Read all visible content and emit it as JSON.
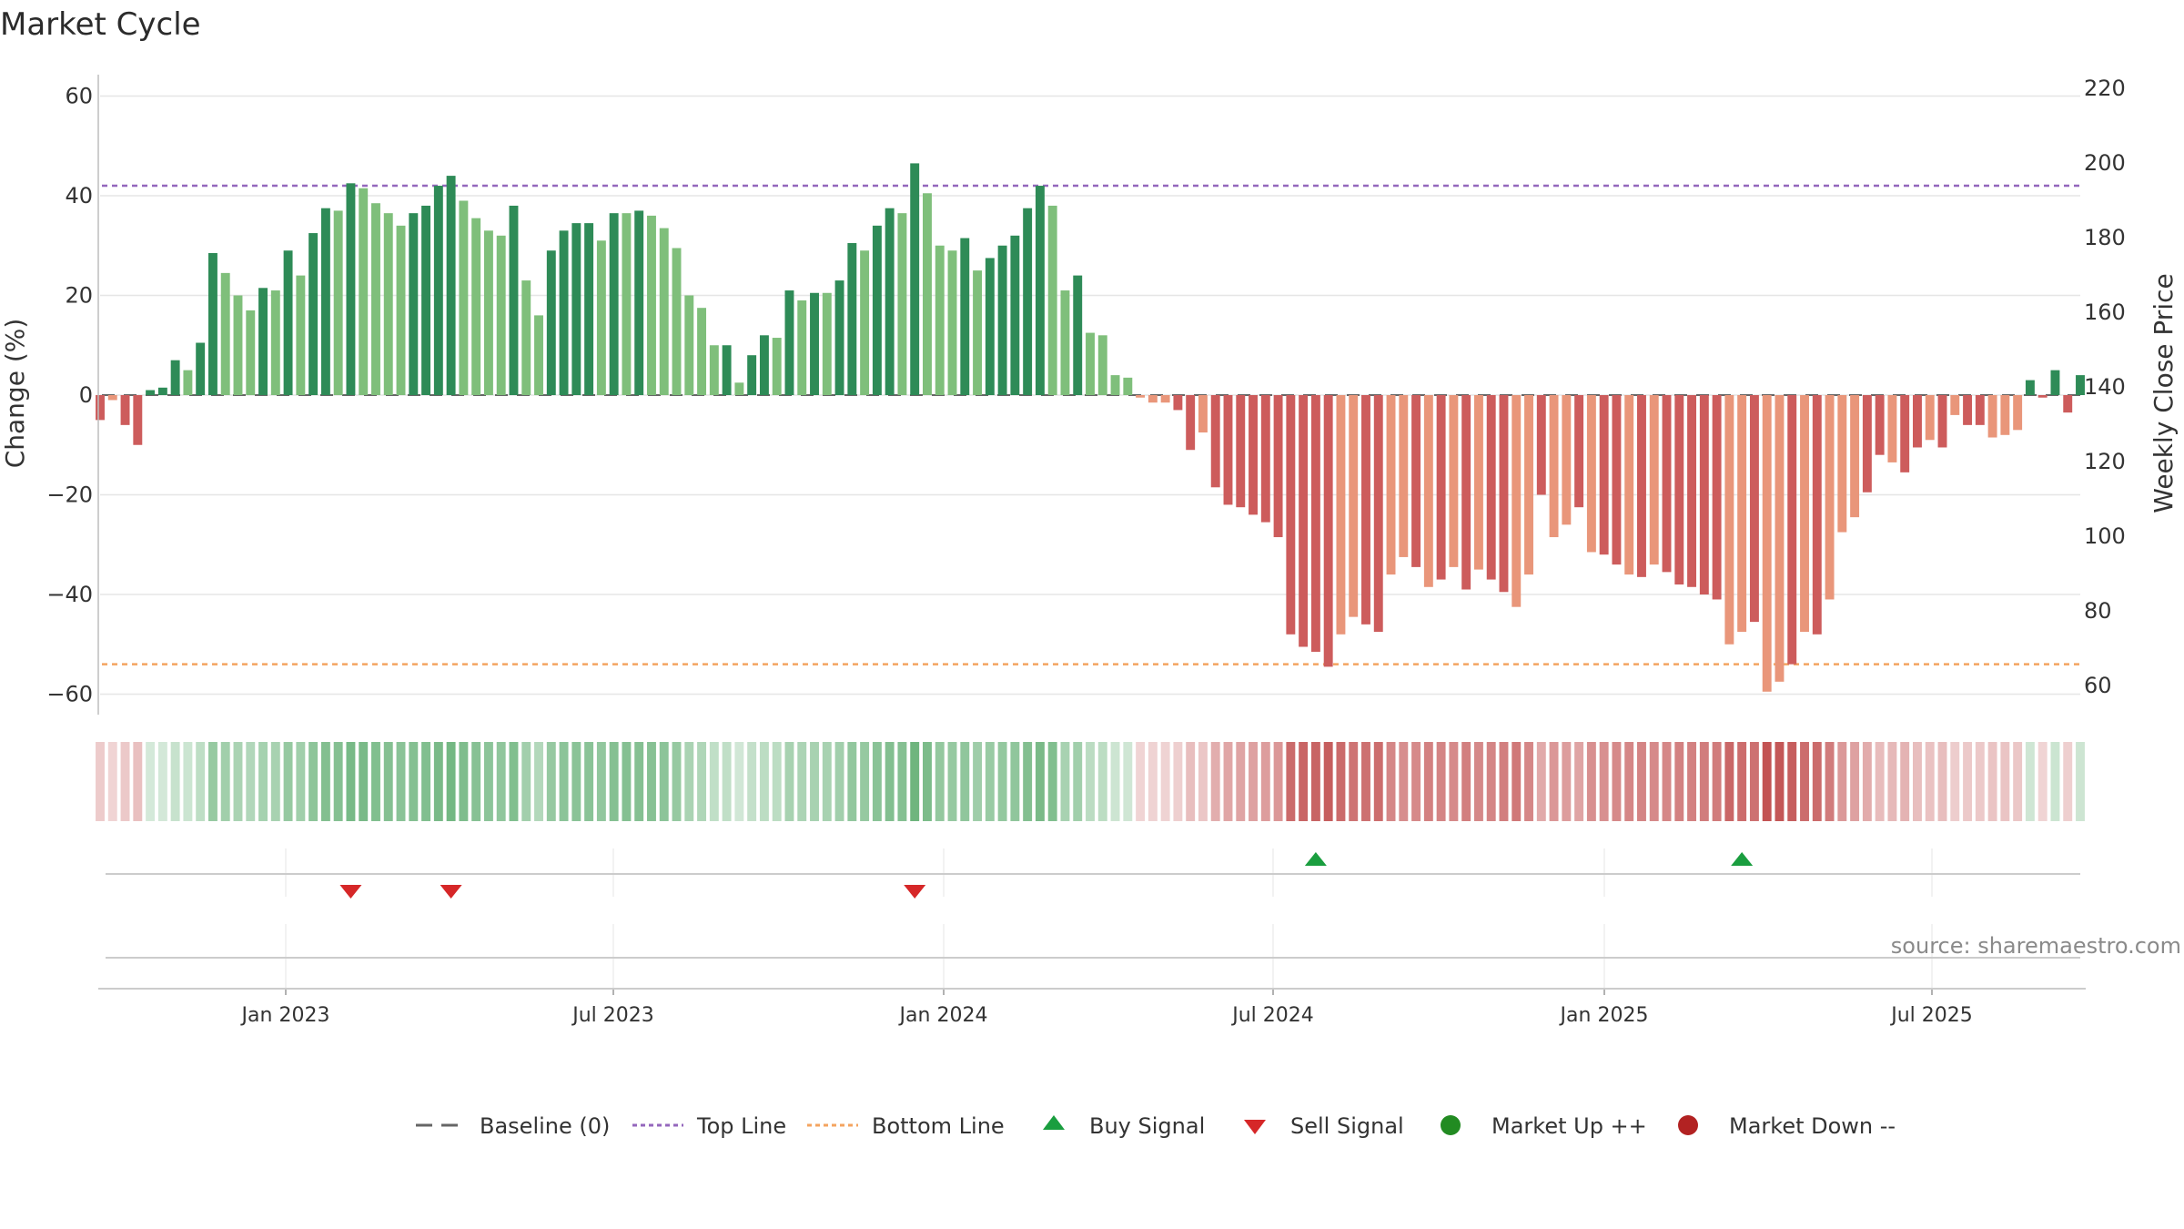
{
  "chart_data": {
    "type": "bar",
    "title": "Market Cycle",
    "ylabel_left": "Change (%)",
    "ylabel_right": "Weekly Close Price",
    "source": "source: sharemaestro.com",
    "y_ticks_left": [
      "60",
      "40",
      "20",
      "0",
      "−20",
      "−40",
      "−60"
    ],
    "y_ticks_right": [
      "220",
      "200",
      "180",
      "160",
      "140",
      "120",
      "100",
      "80",
      "60"
    ],
    "x_ticks": [
      "Jan 2023",
      "Jul 2023",
      "Jan 2024",
      "Jul 2024",
      "Jan 2025",
      "Jul 2025"
    ],
    "ylim_left": [
      -60,
      60
    ],
    "ylim_right": [
      60,
      220
    ],
    "top_line": 42,
    "bottom_line": -54,
    "colors": {
      "pos_dark": "#2e8b57",
      "pos_light": "#7fbf7b",
      "neg_dark": "#cd5c5c",
      "neg_light": "#e9967a",
      "top_line": "#9467bd",
      "bottom_line": "#f4a460",
      "buy": "#1a9e3f",
      "sell": "#d62728",
      "market_up": "#228b22",
      "market_down": "#b22222"
    },
    "values": [
      -5,
      -1,
      -6,
      -10,
      1,
      1.5,
      7,
      5,
      10.5,
      28.5,
      24.5,
      20,
      17,
      21.5,
      21,
      29,
      24,
      32.5,
      37.5,
      37,
      42.5,
      41.5,
      38.5,
      36.5,
      34,
      36.5,
      38,
      42,
      44,
      39,
      35.5,
      33,
      32,
      38,
      23,
      16,
      29,
      33,
      34.5,
      34.5,
      31,
      36.5,
      36.5,
      37,
      36,
      33.5,
      29.5,
      20,
      17.5,
      10,
      10,
      2.5,
      8,
      12,
      11.5,
      21,
      19,
      20.5,
      20.5,
      23,
      30.5,
      29,
      34,
      37.5,
      36.5,
      46.5,
      40.5,
      30,
      29,
      31.5,
      25,
      27.5,
      30,
      32,
      37.5,
      42,
      38,
      21,
      24,
      12.5,
      12,
      4,
      3.5,
      -0.5,
      -1.5,
      -1.5,
      -3,
      -11,
      -7.5,
      -18.5,
      -22,
      -22.5,
      -24,
      -25.5,
      -28.5,
      -48,
      -50.5,
      -51.5,
      -54.5,
      -48,
      -44.5,
      -46,
      -47.5,
      -36,
      -32.5,
      -34.5,
      -38.5,
      -37,
      -34.5,
      -39,
      -35,
      -37,
      -39.5,
      -42.5,
      -36,
      -20,
      -28.5,
      -26,
      -22.5,
      -31.5,
      -32,
      -34,
      -36,
      -36.5,
      -34,
      -35.5,
      -38,
      -38.5,
      -40,
      -41,
      -50,
      -47.5,
      -45.5,
      -59.5,
      -57.5,
      -54,
      -47.5,
      -48,
      -41,
      -27.5,
      -24.5,
      -19.5,
      -12,
      -13.5,
      -15.5,
      -10.5,
      -9,
      -10.5,
      -4,
      -6,
      -6,
      -8.5,
      -8,
      -7,
      3,
      -0.5,
      5,
      -3.5,
      4
    ],
    "styles": [
      0,
      1,
      0,
      0,
      0,
      0,
      0,
      1,
      0,
      0,
      1,
      1,
      1,
      0,
      1,
      0,
      1,
      0,
      0,
      1,
      0,
      1,
      1,
      1,
      1,
      0,
      0,
      0,
      0,
      1,
      1,
      1,
      1,
      0,
      1,
      1,
      0,
      0,
      0,
      0,
      1,
      0,
      1,
      0,
      1,
      1,
      1,
      1,
      1,
      1,
      0,
      1,
      0,
      0,
      1,
      0,
      1,
      0,
      1,
      0,
      0,
      1,
      0,
      0,
      1,
      0,
      1,
      1,
      1,
      0,
      1,
      0,
      0,
      0,
      0,
      0,
      1,
      1,
      0,
      1,
      1,
      1,
      1,
      1,
      1,
      1,
      0,
      0,
      1,
      0,
      0,
      0,
      0,
      0,
      0,
      0,
      0,
      0,
      0,
      1,
      1,
      0,
      0,
      1,
      1,
      0,
      1,
      0,
      1,
      0,
      1,
      0,
      0,
      1,
      1,
      0,
      1,
      1,
      0,
      1,
      0,
      0,
      1,
      0,
      1,
      0,
      0,
      0,
      0,
      0,
      1,
      1,
      0,
      1,
      1,
      0,
      1,
      0,
      1,
      1,
      1,
      0,
      0,
      1,
      0,
      0,
      1,
      0,
      1,
      0,
      0,
      1,
      1,
      1,
      0,
      0,
      0,
      0,
      0
    ],
    "signals": [
      {
        "type": "sell",
        "index": 20
      },
      {
        "type": "sell",
        "index": 28
      },
      {
        "type": "sell",
        "index": 65
      },
      {
        "type": "buy",
        "index": 97
      },
      {
        "type": "buy",
        "index": 131
      }
    ],
    "legend": [
      {
        "kind": "dash-line",
        "color": "#666666",
        "label": "Baseline (0)"
      },
      {
        "kind": "dot-line",
        "color": "#9467bd",
        "label": "Top Line"
      },
      {
        "kind": "dot-line",
        "color": "#f4a460",
        "label": "Bottom Line"
      },
      {
        "kind": "triangle-up",
        "color": "#1a9e3f",
        "label": "Buy Signal"
      },
      {
        "kind": "triangle-down",
        "color": "#d62728",
        "label": "Sell Signal"
      },
      {
        "kind": "circle",
        "color": "#228b22",
        "label": "Market Up ++"
      },
      {
        "kind": "circle",
        "color": "#b22222",
        "label": "Market Down --"
      }
    ]
  }
}
